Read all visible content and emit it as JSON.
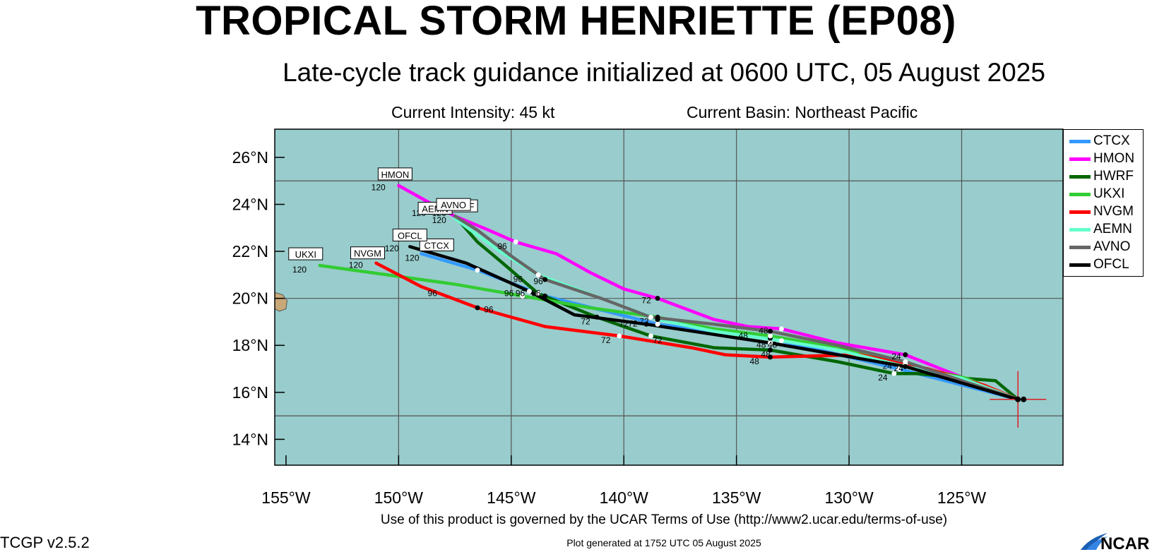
{
  "header": {
    "title": "TROPICAL STORM HENRIETTE (EP08)",
    "subtitle": "Late-cycle track guidance initialized at 0600 UTC, 05 August 2025",
    "intensity": "Current Intensity: 45 kt",
    "basin": "Current Basin: Northeast Pacific"
  },
  "footer": {
    "terms": "Use of this product is governed by the UCAR Terms of Use (http://www2.ucar.edu/terms-of-use)",
    "version": "TCGP v2.5.2",
    "generated": "Plot generated at 1752 UTC   05 August 2025",
    "logo_text": "NCAR"
  },
  "map": {
    "extent": {
      "lon_min": -155.5,
      "lon_max": -120.5,
      "lat_min": 12.9,
      "lat_max": 27.2
    },
    "colors": {
      "ocean": "#99CCCC",
      "land": "#C8A878",
      "grid": "#555555"
    },
    "lat_ticks": [
      {
        "value": 26,
        "label": "26°N"
      },
      {
        "value": 24,
        "label": "24°N"
      },
      {
        "value": 22,
        "label": "22°N"
      },
      {
        "value": 20,
        "label": "20°N"
      },
      {
        "value": 18,
        "label": "18°N"
      },
      {
        "value": 16,
        "label": "16°N"
      },
      {
        "value": 14,
        "label": "14°N"
      }
    ],
    "lon_ticks": [
      {
        "value": -155,
        "label": "155°W"
      },
      {
        "value": -150,
        "label": "150°W"
      },
      {
        "value": -145,
        "label": "145°W"
      },
      {
        "value": -140,
        "label": "140°W"
      },
      {
        "value": -135,
        "label": "135°W"
      },
      {
        "value": -130,
        "label": "130°W"
      },
      {
        "value": -125,
        "label": "125°W"
      }
    ],
    "grid_lat": [
      25,
      20,
      15
    ],
    "grid_lon": [
      -150,
      -145,
      -140,
      -135,
      -130,
      -125
    ],
    "current_position": {
      "lon": -122.5,
      "lat": 15.7
    }
  },
  "legend": [
    {
      "name": "CTCX",
      "color": "#3399FF"
    },
    {
      "name": "HMON",
      "color": "#FF00FF"
    },
    {
      "name": "HWRF",
      "color": "#006600"
    },
    {
      "name": "UKXI",
      "color": "#33CC33"
    },
    {
      "name": "NVGM",
      "color": "#FF0000"
    },
    {
      "name": "AEMN",
      "color": "#66FFCC"
    },
    {
      "name": "AVNO",
      "color": "#666666"
    },
    {
      "name": "OFCL",
      "color": "#000000"
    }
  ],
  "tracks": [
    {
      "name": "CTCX",
      "color": "#3399FF",
      "points": [
        [
          -122.5,
          15.7
        ],
        [
          -127.8,
          17.0
        ],
        [
          -133.5,
          18.3
        ],
        [
          -138.5,
          18.9
        ],
        [
          -143.5,
          20.1
        ],
        [
          -146.5,
          21.2
        ],
        [
          -149.0,
          21.9
        ]
      ],
      "markers": [
        [
          -127.8,
          17.0
        ],
        [
          -133.5,
          18.3
        ],
        [
          -138.5,
          18.9
        ],
        [
          -143.5,
          20.1
        ],
        [
          -146.5,
          21.2
        ]
      ],
      "endpoint": [
        -149.0,
        21.9
      ],
      "label_offset": [
        22,
        -12
      ],
      "hour_offset": [
        0,
        14
      ]
    },
    {
      "name": "HMON",
      "color": "#FF00FF",
      "points": [
        [
          -122.5,
          15.7
        ],
        [
          -127.5,
          17.6
        ],
        [
          -130.5,
          18.1
        ],
        [
          -133.0,
          18.7
        ],
        [
          -134.5,
          18.8
        ],
        [
          -136.0,
          19.1
        ],
        [
          -138.5,
          20.0
        ],
        [
          -140.0,
          20.4
        ],
        [
          -141.5,
          21.1
        ],
        [
          -143.0,
          21.9
        ],
        [
          -144.8,
          22.4
        ],
        [
          -146.0,
          22.9
        ],
        [
          -147.5,
          23.5
        ],
        [
          -148.5,
          24.0
        ],
        [
          -150.0,
          24.8
        ]
      ],
      "markers": [
        [
          -127.5,
          17.6
        ],
        [
          -133.0,
          18.7
        ],
        [
          -138.5,
          20.0
        ],
        [
          -144.8,
          22.4
        ]
      ],
      "endpoint": [
        -150.0,
        24.8
      ],
      "label_offset": [
        -5,
        -16
      ],
      "hour_offset": [
        -20,
        12
      ]
    },
    {
      "name": "HWRF",
      "color": "#006600",
      "points": [
        [
          -122.5,
          15.7
        ],
        [
          -123.5,
          16.5
        ],
        [
          -125.0,
          16.6
        ],
        [
          -127.0,
          16.8
        ],
        [
          -128.0,
          16.8
        ],
        [
          -130.5,
          17.3
        ],
        [
          -133.5,
          17.8
        ],
        [
          -136.0,
          17.9
        ],
        [
          -138.8,
          18.4
        ],
        [
          -141.2,
          19.2
        ],
        [
          -143.8,
          20.2
        ],
        [
          -145.5,
          21.6
        ],
        [
          -146.5,
          22.4
        ],
        [
          -147.5,
          23.5
        ]
      ],
      "markers": [
        [
          -128.0,
          16.8
        ],
        [
          -133.5,
          17.8
        ],
        [
          -138.8,
          18.4
        ],
        [
          -141.2,
          19.2
        ],
        [
          -143.8,
          20.2
        ]
      ],
      "endpoint": [
        -147.5,
        23.5
      ],
      "label_offset": [
        8,
        -14
      ],
      "hour_offset": [
        -14,
        12
      ]
    },
    {
      "name": "UKXI",
      "color": "#33CC33",
      "points": [
        [
          -122.5,
          15.7
        ],
        [
          -124.8,
          16.6
        ],
        [
          -127.5,
          17.2
        ],
        [
          -130.5,
          17.9
        ],
        [
          -133.5,
          18.4
        ],
        [
          -136.0,
          18.7
        ],
        [
          -138.5,
          19.2
        ],
        [
          -141.5,
          19.6
        ],
        [
          -144.5,
          20.1
        ],
        [
          -147.5,
          20.6
        ],
        [
          -150.5,
          21.0
        ],
        [
          -153.5,
          21.4
        ]
      ],
      "markers": [
        [
          -127.5,
          17.2
        ],
        [
          -133.5,
          18.4
        ],
        [
          -138.5,
          19.2
        ],
        [
          -144.5,
          20.1
        ]
      ],
      "endpoint": [
        -153.5,
        21.4
      ],
      "label_offset": [
        -20,
        -16
      ],
      "hour_offset": [
        -18,
        12
      ]
    },
    {
      "name": "NVGM",
      "color": "#FF0000",
      "points": [
        [
          -122.5,
          15.7
        ],
        [
          -124.0,
          16.3
        ],
        [
          -126.5,
          17.0
        ],
        [
          -127.5,
          17.2
        ],
        [
          -129.5,
          17.6
        ],
        [
          -133.5,
          17.5
        ],
        [
          -135.5,
          17.6
        ],
        [
          -137.0,
          17.9
        ],
        [
          -140.2,
          18.4
        ],
        [
          -143.5,
          18.8
        ],
        [
          -146.5,
          19.6
        ],
        [
          -149.0,
          20.5
        ],
        [
          -151.0,
          21.5
        ]
      ],
      "markers": [
        [
          -127.5,
          17.2
        ],
        [
          -133.5,
          17.5
        ],
        [
          -140.2,
          18.4
        ],
        [
          -146.5,
          19.6
        ]
      ],
      "endpoint": [
        -151.0,
        21.5
      ],
      "label_offset": [
        -12,
        -14
      ],
      "hour_offset": [
        -18,
        12
      ]
    },
    {
      "name": "AEMN",
      "color": "#66FFCC",
      "points": [
        [
          -122.5,
          15.7
        ],
        [
          -125.0,
          16.6
        ],
        [
          -127.5,
          17.1
        ],
        [
          -130.5,
          17.8
        ],
        [
          -133.0,
          18.2
        ],
        [
          -136.0,
          18.6
        ],
        [
          -138.5,
          19.1
        ],
        [
          -141.0,
          20.0
        ],
        [
          -143.8,
          21.0
        ],
        [
          -145.5,
          22.0
        ],
        [
          -146.8,
          22.9
        ],
        [
          -147.5,
          23.4
        ]
      ],
      "markers": [
        [
          -127.5,
          17.1
        ],
        [
          -133.0,
          18.2
        ],
        [
          -138.5,
          19.1
        ],
        [
          -143.8,
          21.0
        ]
      ],
      "endpoint": [
        -147.5,
        23.4
      ],
      "label_offset": [
        -28,
        -14
      ],
      "hour_offset": [
        -24,
        10
      ]
    },
    {
      "name": "AVNO",
      "color": "#666666",
      "points": [
        [
          -122.5,
          15.7
        ],
        [
          -127.5,
          17.3
        ],
        [
          -130.5,
          18.0
        ],
        [
          -133.5,
          18.6
        ],
        [
          -136.0,
          18.9
        ],
        [
          -138.8,
          19.2
        ],
        [
          -141.0,
          20.0
        ],
        [
          -143.5,
          20.8
        ],
        [
          -145.0,
          21.8
        ],
        [
          -146.5,
          22.9
        ],
        [
          -147.5,
          23.5
        ]
      ],
      "markers": [
        [
          -127.5,
          17.3
        ],
        [
          -133.5,
          18.6
        ],
        [
          -138.8,
          19.2
        ],
        [
          -143.5,
          20.8
        ]
      ],
      "endpoint": [
        -147.5,
        23.5
      ],
      "label_offset": [
        -2,
        -16
      ],
      "hour_offset": [
        -18,
        12
      ]
    },
    {
      "name": "OFCL",
      "color": "#000000",
      "points": [
        [
          -122.5,
          15.7
        ],
        [
          -127.5,
          17.1
        ],
        [
          -133.5,
          18.1
        ],
        [
          -139.0,
          18.9
        ],
        [
          -142.2,
          19.3
        ],
        [
          -144.2,
          20.3
        ],
        [
          -147.0,
          21.5
        ],
        [
          -149.5,
          22.2
        ]
      ],
      "markers": [
        [
          -127.5,
          17.1
        ],
        [
          -133.5,
          18.1
        ],
        [
          -139.0,
          18.9
        ],
        [
          -144.2,
          20.3
        ]
      ],
      "endpoint": [
        -149.5,
        22.2
      ],
      "label_offset": [
        0,
        -16
      ],
      "hour_offset": [
        -12,
        12
      ]
    }
  ],
  "hour_labels": [
    {
      "text": "120",
      "lon": -150.9,
      "lat": 24.6
    },
    {
      "text": "120",
      "lon": -149.1,
      "lat": 23.5
    },
    {
      "text": "120",
      "lon": -148.2,
      "lat": 23.5
    },
    {
      "text": "120",
      "lon": -148.2,
      "lat": 23.2
    },
    {
      "text": "120",
      "lon": -150.3,
      "lat": 22.0
    },
    {
      "text": "120",
      "lon": -149.4,
      "lat": 21.6
    },
    {
      "text": "120",
      "lon": -151.9,
      "lat": 21.3
    },
    {
      "text": "120",
      "lon": -154.4,
      "lat": 21.1
    },
    {
      "text": "96",
      "lon": -145.4,
      "lat": 22.1
    },
    {
      "text": "96",
      "lon": -144.7,
      "lat": 20.7
    },
    {
      "text": "96",
      "lon": -143.8,
      "lat": 20.6
    },
    {
      "text": "96",
      "lon": -148.5,
      "lat": 20.1
    },
    {
      "text": "96",
      "lon": -146.0,
      "lat": 19.4
    },
    {
      "text": "96",
      "lon": -145.1,
      "lat": 20.1
    },
    {
      "text": "96",
      "lon": -144.6,
      "lat": 20.1
    },
    {
      "text": "96",
      "lon": -143.9,
      "lat": 20.1
    },
    {
      "text": "72",
      "lon": -139.0,
      "lat": 19.8
    },
    {
      "text": "72",
      "lon": -141.7,
      "lat": 18.9
    },
    {
      "text": "72",
      "lon": -140.0,
      "lat": 18.8
    },
    {
      "text": "72",
      "lon": -139.6,
      "lat": 18.8
    },
    {
      "text": "72",
      "lon": -139.1,
      "lat": 18.9
    },
    {
      "text": "72",
      "lon": -140.8,
      "lat": 18.1
    },
    {
      "text": "72",
      "lon": -138.5,
      "lat": 18.1
    },
    {
      "text": "48",
      "lon": -134.7,
      "lat": 18.3
    },
    {
      "text": "48",
      "lon": -133.8,
      "lat": 18.5
    },
    {
      "text": "48",
      "lon": -133.9,
      "lat": 17.9
    },
    {
      "text": "48",
      "lon": -133.4,
      "lat": 17.9
    },
    {
      "text": "48",
      "lon": -133.7,
      "lat": 17.5
    },
    {
      "text": "48",
      "lon": -134.2,
      "lat": 17.2
    },
    {
      "text": "24",
      "lon": -127.9,
      "lat": 17.4
    },
    {
      "text": "24",
      "lon": -128.3,
      "lat": 17.0
    },
    {
      "text": "24",
      "lon": -127.8,
      "lat": 16.9
    },
    {
      "text": "24",
      "lon": -128.5,
      "lat": 16.5
    }
  ]
}
